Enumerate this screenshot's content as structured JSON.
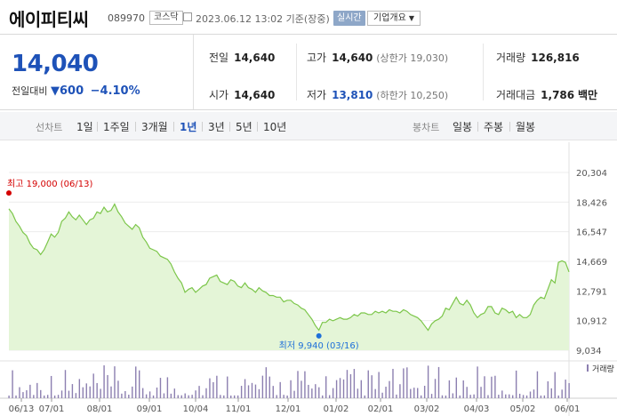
{
  "header": {
    "stock_name": "에이피티씨",
    "stock_code": "089970",
    "market": "코스닥",
    "timestamp": "2023.06.12 13:02 기준(장중)",
    "realtime_label": "실시간",
    "company_overview_label": "기업개요"
  },
  "price": {
    "current": "14,040",
    "change_label": "전일대비",
    "change_amount": "600",
    "change_percent": "−4.10%",
    "direction": "down"
  },
  "stats": {
    "prev_close": {
      "label": "전일",
      "value": "14,640"
    },
    "high": {
      "label": "고가",
      "value": "14,640",
      "sub": "(상한가 19,030)"
    },
    "volume": {
      "label": "거래량",
      "value": "126,816"
    },
    "open": {
      "label": "시가",
      "value": "14,640"
    },
    "low": {
      "label": "저가",
      "value": "13,810",
      "sub": "(하한가 10,250)"
    },
    "amount": {
      "label": "거래대금",
      "value": "1,786",
      "unit": "백만"
    }
  },
  "toolbar": {
    "line_chart_title": "선차트",
    "periods": [
      "1일",
      "1주일",
      "3개월",
      "1년",
      "3년",
      "5년",
      "10년"
    ],
    "active_period": "1년",
    "candle_chart_title": "봉차트",
    "candles": [
      "일봉",
      "주봉",
      "월봉"
    ]
  },
  "chart_data": {
    "type": "area",
    "y_ticks": [
      "20,304",
      "18,426",
      "16,547",
      "14,669",
      "12,791",
      "10,912",
      "9,034"
    ],
    "ylim": [
      9034,
      20304
    ],
    "x_ticks": [
      "06/13",
      "07/01",
      "08/01",
      "09/01",
      "10/04",
      "11/01",
      "12/01",
      "01/02",
      "02/01",
      "03/02",
      "04/03",
      "05/02",
      "06/01"
    ],
    "high_annotation": "최고 19,000 (06/13)",
    "low_annotation": "최저 9,940 (03/16)",
    "high_value": 19000,
    "low_value": 9940,
    "volume_label": "거래량",
    "colors": {
      "line": "#7cc64a",
      "fill": "#e4f5d7",
      "volume": "#8c7fb0",
      "high": "#d40000",
      "low": "#1e6fd9"
    },
    "prices": [
      18000,
      17700,
      17200,
      16900,
      16500,
      16300,
      15800,
      15500,
      15400,
      15100,
      15400,
      15900,
      16400,
      16200,
      16500,
      17200,
      17400,
      17800,
      17500,
      17300,
      17600,
      17300,
      17000,
      17300,
      17400,
      17800,
      17700,
      18100,
      17800,
      17900,
      18300,
      17800,
      17500,
      17100,
      16900,
      16700,
      17000,
      16800,
      16200,
      15900,
      15500,
      15400,
      15300,
      15000,
      14900,
      14800,
      14500,
      14000,
      13600,
      13300,
      12700,
      12900,
      13000,
      12700,
      12900,
      13100,
      13200,
      13600,
      13700,
      13800,
      13400,
      13300,
      13200,
      13500,
      13400,
      13100,
      13000,
      13300,
      13000,
      12900,
      12700,
      13000,
      12800,
      12700,
      12500,
      12500,
      12400,
      12400,
      12100,
      12200,
      12200,
      12000,
      11900,
      11700,
      11600,
      11300,
      11000,
      10600,
      10300,
      10800,
      10800,
      11000,
      10900,
      11000,
      11100,
      11000,
      11000,
      11100,
      11300,
      11200,
      11400,
      11400,
      11300,
      11300,
      11500,
      11400,
      11500,
      11400,
      11600,
      11500,
      11500,
      11400,
      11600,
      11500,
      11300,
      11200,
      11100,
      10900,
      10600,
      10300,
      10700,
      10900,
      11000,
      11200,
      11700,
      11600,
      12000,
      12400,
      12000,
      11900,
      12200,
      11900,
      11400,
      11100,
      11300,
      11400,
      11800,
      11800,
      11400,
      11300,
      11700,
      11600,
      11400,
      11500,
      11100,
      11300,
      11100,
      11100,
      11300,
      11900,
      12200,
      12400,
      12300,
      12900,
      13500,
      13300,
      14600,
      14700,
      14600,
      14000
    ]
  }
}
